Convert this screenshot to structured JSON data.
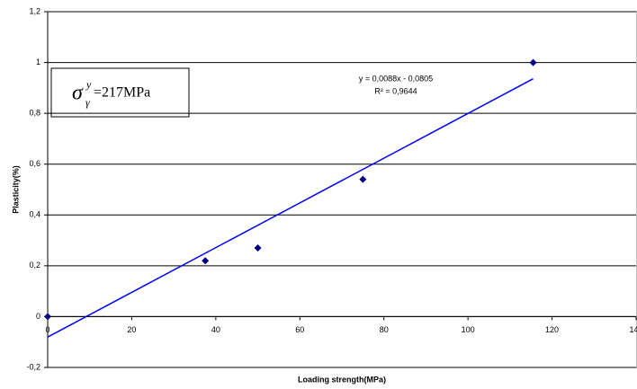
{
  "chart_data": {
    "type": "scatter",
    "x_label": "Loading strength(MPa)",
    "y_label": "Plasticity(%)",
    "x": [
      0,
      37.5,
      50,
      75,
      115.5
    ],
    "values": [
      0,
      0.22,
      0.27,
      0.54,
      1.0
    ],
    "color": "#000080",
    "xlim": [
      0,
      140
    ],
    "ylim": [
      -0.2,
      1.2
    ],
    "xticks": [
      0,
      20,
      40,
      60,
      80,
      100,
      120,
      {
        "value": 140,
        "label": "140"
      }
    ],
    "yticks": [
      {
        "value": -0.2,
        "label": "-0,2"
      },
      0,
      {
        "value": 0.2,
        "label": "0,2"
      },
      {
        "value": 0.4,
        "label": "0,4"
      },
      {
        "value": 0.6,
        "label": "0,6"
      },
      {
        "value": 0.8,
        "label": "0,8"
      },
      1,
      {
        "value": 1.2,
        "label": "1,2"
      }
    ],
    "grid": true,
    "trendline": {
      "slope": 0.0088,
      "intercept": -0.0805,
      "color": "#0000ff",
      "equation": "y = 0,0088x - 0,0805",
      "r2": "R² = 0,9644"
    },
    "annotation": {
      "symbol": "σ",
      "sup": "y",
      "sub": "γ",
      "text": "=217MPa"
    }
  }
}
